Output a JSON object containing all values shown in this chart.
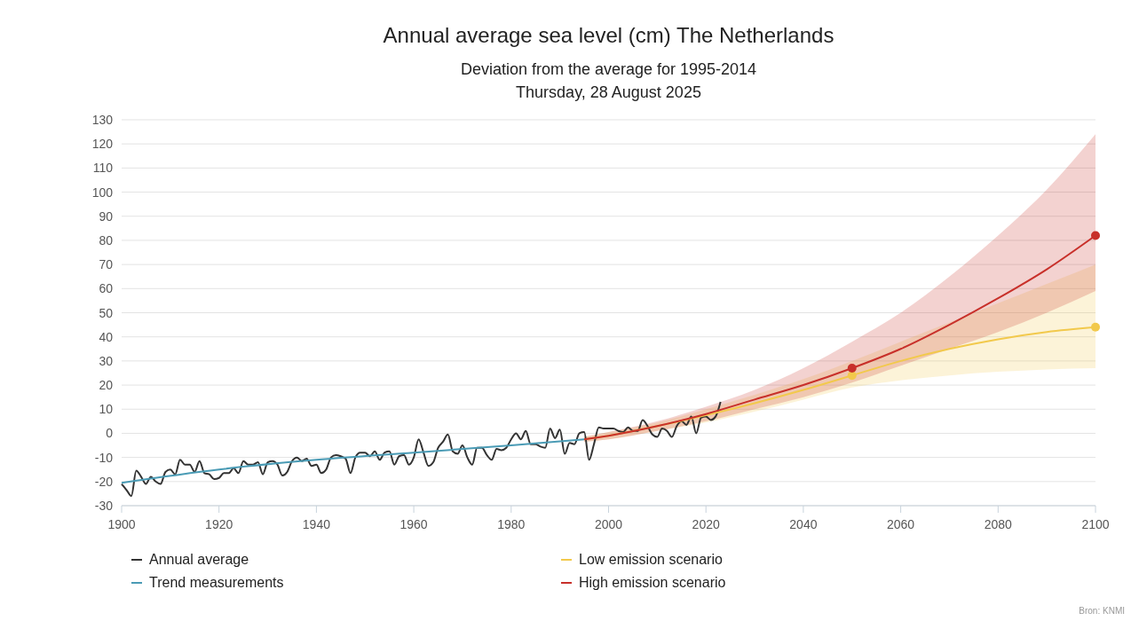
{
  "chart_data": {
    "type": "line",
    "title": "Annual average sea level (cm) The Netherlands",
    "subtitle": "Deviation from the average for 1995-2014\nThursday, 28 August 2025",
    "annotations": [
      "Bron: KNMI"
    ],
    "xlim": [
      1900,
      2100
    ],
    "xticks": [
      1900,
      1920,
      1940,
      1960,
      1980,
      2000,
      2020,
      2040,
      2060,
      2080,
      2100
    ],
    "ylim": [
      -30,
      130
    ],
    "yticks": [
      -30,
      -20,
      -10,
      0,
      10,
      20,
      30,
      40,
      50,
      60,
      70,
      80,
      90,
      100,
      110,
      120,
      130
    ],
    "grid": "y",
    "legend": "bottom",
    "marker": "none",
    "series": [
      {
        "name": "Annual average",
        "color": "#333333",
        "x": [
          1900,
          1901,
          1902,
          1903,
          1904,
          1905,
          1906,
          1907,
          1908,
          1909,
          1910,
          1911,
          1912,
          1913,
          1914,
          1915,
          1916,
          1917,
          1918,
          1919,
          1920,
          1921,
          1922,
          1923,
          1924,
          1925,
          1926,
          1927,
          1928,
          1929,
          1930,
          1931,
          1932,
          1933,
          1934,
          1935,
          1936,
          1937,
          1938,
          1939,
          1940,
          1941,
          1942,
          1943,
          1944,
          1945,
          1946,
          1947,
          1948,
          1949,
          1950,
          1951,
          1952,
          1953,
          1954,
          1955,
          1956,
          1957,
          1958,
          1959,
          1960,
          1961,
          1962,
          1963,
          1964,
          1965,
          1966,
          1967,
          1968,
          1969,
          1970,
          1971,
          1972,
          1973,
          1974,
          1975,
          1976,
          1977,
          1978,
          1979,
          1980,
          1981,
          1982,
          1983,
          1984,
          1985,
          1986,
          1987,
          1988,
          1989,
          1990,
          1991,
          1992,
          1993,
          1994,
          1995,
          1996,
          1997,
          1998,
          1999,
          2000,
          2001,
          2002,
          2003,
          2004,
          2005,
          2006,
          2007,
          2008,
          2009,
          2010,
          2011,
          2012,
          2013,
          2014,
          2015,
          2016,
          2017,
          2018,
          2019,
          2020,
          2021,
          2022,
          2023
        ],
        "values": [
          -21,
          -23.5,
          -26,
          -15.5,
          -18,
          -21,
          -18,
          -20,
          -21,
          -16,
          -15,
          -17,
          -11,
          -13,
          -13,
          -16,
          -11.5,
          -16.5,
          -17,
          -19,
          -18.5,
          -16.5,
          -16.5,
          -14.5,
          -16.5,
          -11.5,
          -13,
          -13,
          -12,
          -17,
          -12,
          -11.5,
          -13,
          -17.5,
          -16,
          -11.5,
          -10,
          -11.5,
          -10.5,
          -13.5,
          -13,
          -16.5,
          -15,
          -10,
          -9,
          -9.5,
          -10.5,
          -16.5,
          -10,
          -8,
          -8,
          -9.5,
          -7.5,
          -11,
          -8,
          -7.5,
          -13,
          -9.5,
          -9,
          -13,
          -10,
          -2.5,
          -8,
          -13.5,
          -12,
          -6,
          -3.5,
          -0.5,
          -7.5,
          -8.5,
          -5,
          -10,
          -13,
          -6,
          -6,
          -9,
          -11,
          -6.5,
          -7,
          -6,
          -2.5,
          0,
          -2.5,
          1,
          -4.5,
          -4.5,
          -5.5,
          -6,
          2,
          -2,
          1.5,
          -8.5,
          -4,
          -4.5,
          0,
          0.5,
          -11,
          -4.5,
          2.5,
          2,
          2,
          2,
          1,
          0.5,
          2.5,
          1,
          1,
          5.5,
          3,
          -0.5,
          -1.5,
          2,
          1,
          -1.5,
          3,
          5,
          3.5,
          7,
          0,
          6.5,
          7,
          5.5,
          7,
          13
        ]
      },
      {
        "name": "Trend measurements",
        "color": "#4a9bb5",
        "x": [
          1900,
          1920,
          1940,
          1960,
          1980,
          1995
        ],
        "values": [
          -20.5,
          -15,
          -11,
          -8,
          -5,
          -2.5
        ]
      },
      {
        "name": "Low emission scenario",
        "color": "#f2c94c",
        "x": [
          1995,
          2000,
          2010,
          2020,
          2030,
          2040,
          2050,
          2060,
          2070,
          2080,
          2090,
          2100
        ],
        "values": [
          -2.5,
          -1,
          3,
          7.5,
          12.5,
          18,
          24,
          30,
          35,
          39,
          42,
          44
        ],
        "lower": [
          -3.5,
          -2.5,
          1,
          4.5,
          9,
          14,
          19,
          22,
          24,
          25.5,
          26.5,
          27
        ],
        "upper": [
          -1.5,
          0.5,
          4.5,
          10,
          16,
          22.5,
          30,
          38,
          46,
          54,
          62,
          70
        ]
      },
      {
        "name": "High emission scenario",
        "color": "#c8302a",
        "x": [
          1995,
          2000,
          2010,
          2020,
          2030,
          2040,
          2050,
          2060,
          2070,
          2080,
          2090,
          2100
        ],
        "values": [
          -2.5,
          -1,
          3,
          8,
          14,
          20,
          27,
          35,
          45,
          56,
          68,
          82
        ],
        "lower": [
          -3.5,
          -2.5,
          1,
          5,
          10,
          15,
          21,
          28,
          35,
          42,
          50,
          59
        ],
        "upper": [
          -1.5,
          0.5,
          5,
          11,
          18,
          27,
          38,
          50,
          65,
          82,
          101,
          124
        ]
      },
      {
        "type": "scatter",
        "marker": "circle",
        "color": "#f2c94c",
        "x": [
          2050,
          2100
        ],
        "values": [
          24,
          44
        ]
      },
      {
        "type": "scatter",
        "marker": "circle",
        "color": "#c8302a",
        "x": [
          2050,
          2100
        ],
        "values": [
          27,
          82
        ]
      }
    ]
  }
}
